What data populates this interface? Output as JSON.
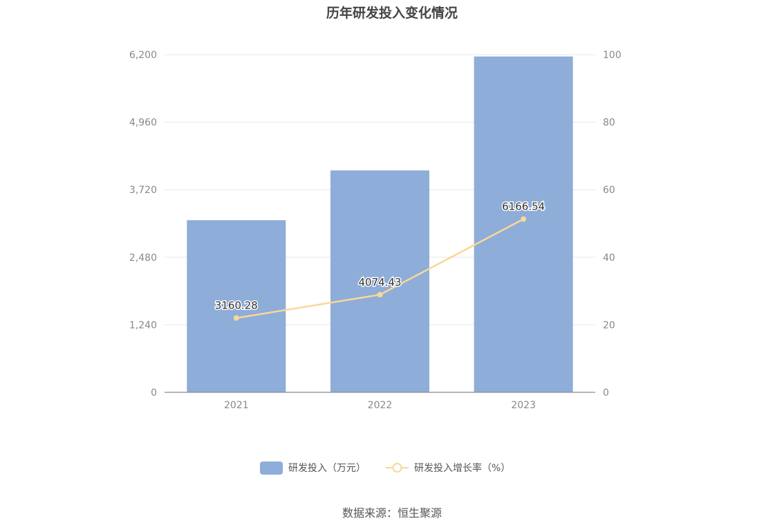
{
  "chart_data": {
    "type": "bar",
    "title": "历年研发投入变化情况",
    "categories": [
      "2021",
      "2022",
      "2023"
    ],
    "series": [
      {
        "name": "研发投入（万元）",
        "type": "bar",
        "axis": "left",
        "color": "#8eadd9",
        "values": [
          3160.28,
          4074.43,
          6166.54
        ],
        "labels": [
          "3160.28",
          "4074.43",
          "6166.54"
        ]
      },
      {
        "name": "研发投入增长率（%）",
        "type": "line",
        "axis": "right",
        "color": "#fad797",
        "values": [
          22,
          28.9,
          51.3
        ]
      }
    ],
    "y_left": {
      "min": 0,
      "max": 6200,
      "ticks": [
        0,
        1240,
        2480,
        3720,
        4960,
        6200
      ],
      "tick_labels": [
        "0",
        "1,240",
        "2,480",
        "3,720",
        "4,960",
        "6,200"
      ]
    },
    "y_right": {
      "min": 0,
      "max": 100,
      "ticks": [
        0,
        20,
        40,
        60,
        80,
        100
      ],
      "tick_labels": [
        "0",
        "20",
        "40",
        "60",
        "80",
        "100"
      ]
    },
    "grid": true,
    "legend_position": "bottom"
  },
  "source": "数据来源：恒生聚源"
}
